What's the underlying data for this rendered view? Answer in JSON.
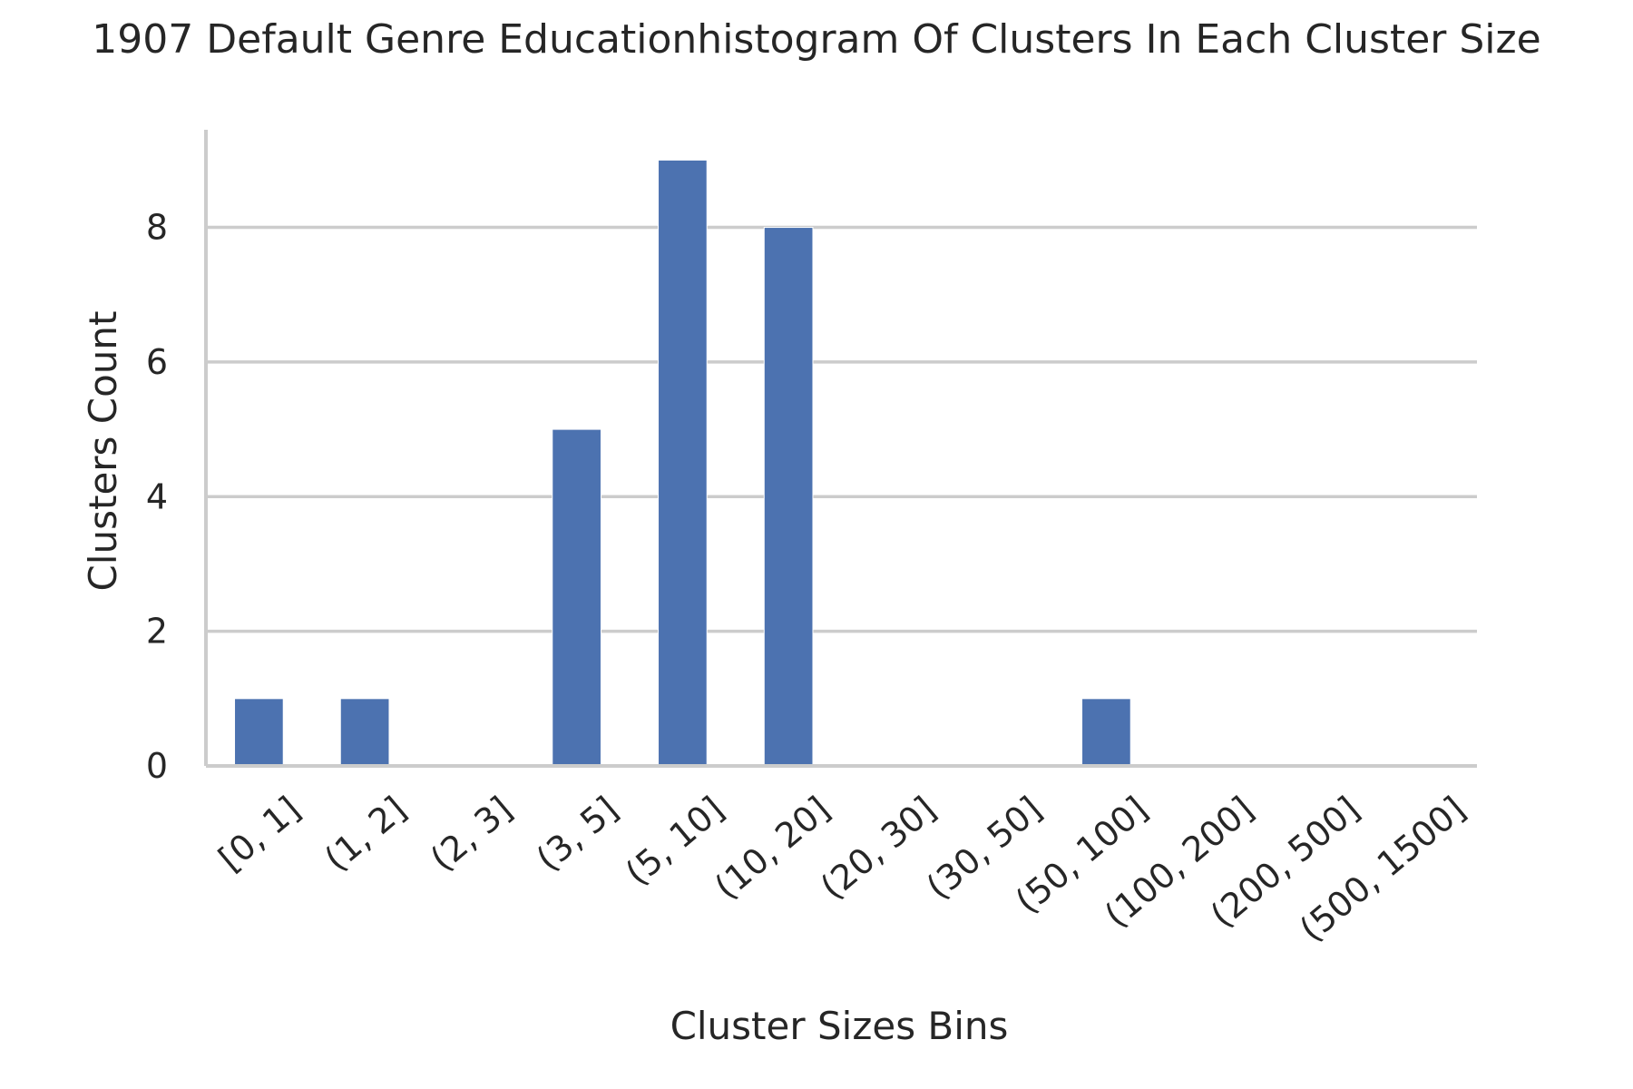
{
  "chart_data": {
    "type": "bar",
    "title": "1907 Default Genre Educationhistogram Of Clusters In Each Cluster Size",
    "xlabel": "Cluster Sizes Bins",
    "ylabel": "Clusters Count",
    "categories": [
      "[0, 1]",
      "(1, 2]",
      "(2, 3]",
      "(3, 5]",
      "(5, 10]",
      "(10, 20]",
      "(20, 30]",
      "(30, 50]",
      "(50, 100]",
      "(100, 200]",
      "(200, 500]",
      "(500, 1500]"
    ],
    "values": [
      1,
      1,
      0,
      5,
      9,
      8,
      0,
      0,
      1,
      0,
      0,
      0
    ],
    "ylim": [
      0,
      9.45
    ],
    "yticks": [
      0,
      2,
      4,
      6,
      8
    ],
    "grid": "horizontal",
    "legend": "none",
    "bar_color": "#4c72b0",
    "grid_color": "#cccccc"
  }
}
